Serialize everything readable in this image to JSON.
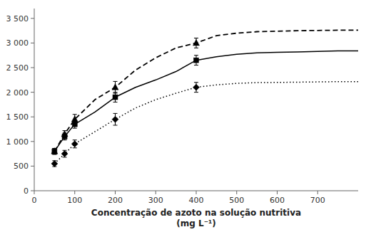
{
  "chart_data": {
    "type": "line",
    "xlabel": "Concentração de azoto na solução nutritiva\n(mg L⁻¹)",
    "xlim": [
      0,
      800
    ],
    "ylim": [
      0,
      3700
    ],
    "xticks": [
      0,
      100,
      200,
      300,
      400,
      500,
      600,
      700
    ],
    "yticks": [
      0,
      500,
      {
        "value": 1000,
        "label": "1 000"
      },
      {
        "value": 1500,
        "label": "1 500"
      },
      {
        "value": 2000,
        "label": "2 000"
      },
      {
        "value": 2500,
        "label": "2 500"
      },
      {
        "value": 3000,
        "label": "3 000"
      },
      {
        "value": 3500,
        "label": "3 500"
      }
    ],
    "grid": false,
    "color": "#000000",
    "series": [
      {
        "type": "line",
        "line_style": "solid",
        "x": [
          50,
          75,
          100,
          150,
          200,
          250,
          300,
          350,
          400,
          450,
          500,
          550,
          600,
          650,
          700,
          750,
          800
        ],
        "values": [
          800,
          1100,
          1350,
          1600,
          1900,
          2100,
          2250,
          2420,
          2650,
          2720,
          2770,
          2800,
          2810,
          2820,
          2830,
          2840,
          2840
        ]
      },
      {
        "type": "line",
        "line_style": "dashed",
        "x": [
          50,
          75,
          100,
          150,
          200,
          250,
          300,
          350,
          400,
          450,
          500,
          550,
          600,
          650,
          700,
          750,
          800
        ],
        "values": [
          800,
          1150,
          1450,
          1850,
          2100,
          2450,
          2700,
          2900,
          3000,
          3150,
          3200,
          3230,
          3240,
          3250,
          3255,
          3260,
          3260
        ]
      },
      {
        "type": "line",
        "line_style": "dotted",
        "x": [
          50,
          75,
          100,
          150,
          200,
          250,
          300,
          350,
          400,
          450,
          500,
          550,
          600,
          650,
          700,
          750,
          800
        ],
        "values": [
          550,
          750,
          950,
          1200,
          1450,
          1680,
          1850,
          1980,
          2100,
          2150,
          2180,
          2195,
          2200,
          2205,
          2210,
          2215,
          2215
        ]
      },
      {
        "type": "scatter",
        "marker": "square",
        "x": [
          50,
          75,
          100,
          200,
          400
        ],
        "values": [
          800,
          1100,
          1350,
          1900,
          2650
        ],
        "errors": [
          60,
          70,
          80,
          100,
          100
        ]
      },
      {
        "type": "scatter",
        "marker": "triangle",
        "x": [
          50,
          75,
          100,
          200,
          400
        ],
        "values": [
          800,
          1150,
          1450,
          2100,
          3000
        ],
        "errors": [
          60,
          70,
          100,
          120,
          100
        ]
      },
      {
        "type": "scatter",
        "marker": "diamond",
        "x": [
          50,
          75,
          100,
          200,
          400
        ],
        "values": [
          550,
          750,
          950,
          1450,
          2100
        ],
        "errors": [
          60,
          70,
          80,
          120,
          100
        ]
      }
    ]
  }
}
